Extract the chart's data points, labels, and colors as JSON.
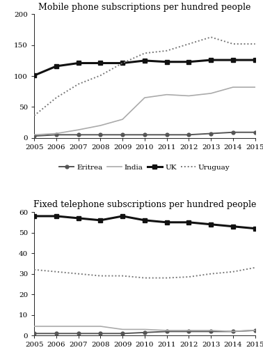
{
  "years": [
    2005,
    2006,
    2007,
    2008,
    2009,
    2010,
    2011,
    2012,
    2013,
    2014,
    2015
  ],
  "mobile": {
    "title": "Mobile phone subscriptions per hundred people",
    "ylim": [
      0,
      200
    ],
    "yticks": [
      0,
      50,
      100,
      150,
      200
    ],
    "Eritrea": [
      3,
      5,
      5,
      5,
      5,
      5,
      5,
      5,
      7,
      9,
      9
    ],
    "India": [
      5,
      7,
      13,
      20,
      30,
      65,
      70,
      68,
      72,
      82,
      82
    ],
    "UK": [
      101,
      116,
      121,
      121,
      121,
      125,
      123,
      123,
      126,
      126,
      126
    ],
    "Uruguay": [
      36,
      65,
      87,
      101,
      121,
      137,
      141,
      152,
      163,
      152,
      152
    ]
  },
  "fixed": {
    "title": "Fixed telephone subscriptions per hundred people",
    "ylim": [
      0,
      60
    ],
    "yticks": [
      0,
      10,
      20,
      30,
      40,
      50,
      60
    ],
    "Eritrea": [
      1,
      1,
      1,
      1,
      1,
      1.5,
      2,
      2,
      2,
      2,
      2.5
    ],
    "India": [
      4.5,
      4.5,
      4.5,
      4.5,
      3,
      3,
      2.5,
      2.5,
      2.5,
      2,
      2.5
    ],
    "UK": [
      58,
      58,
      57,
      56,
      58,
      56,
      55,
      55,
      54,
      53,
      52
    ],
    "Uruguay": [
      32,
      31,
      30,
      29,
      29,
      28,
      28,
      28.5,
      30,
      31,
      33
    ]
  },
  "series": [
    "Eritrea",
    "India",
    "UK",
    "Uruguay"
  ],
  "colors": {
    "Eritrea": "#555555",
    "India": "#aaaaaa",
    "UK": "#111111",
    "Uruguay": "#777777"
  },
  "linestyles": {
    "Eritrea": "solid",
    "India": "solid",
    "UK": "solid",
    "Uruguay": "dotted"
  },
  "linewidths": {
    "Eritrea": 1.4,
    "India": 1.2,
    "UK": 2.2,
    "Uruguay": 1.4
  },
  "markers": {
    "Eritrea": "o",
    "India": "none",
    "UK": "s",
    "Uruguay": "none"
  },
  "markersize": {
    "Eritrea": 3.5,
    "India": 0,
    "UK": 4.5,
    "Uruguay": 0
  },
  "bg_color": "#ffffff",
  "legend_fontsize": 7.5,
  "title_fontsize": 9,
  "tick_fontsize": 7.5
}
